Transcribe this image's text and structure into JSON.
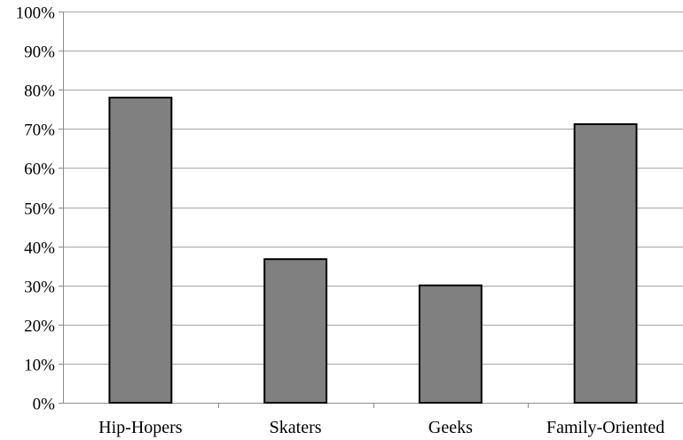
{
  "chart_data": {
    "type": "bar",
    "categories": [
      "Hip-Hopers",
      "Skaters",
      "Geeks",
      "Family-Oriented"
    ],
    "values": [
      78,
      36.7,
      30,
      71.2
    ],
    "ylim": [
      0,
      100
    ],
    "yticks": [
      0,
      10,
      20,
      30,
      40,
      50,
      60,
      70,
      80,
      90,
      100
    ],
    "ytick_suffix": "%",
    "grid": true,
    "legend": "none",
    "colors": {
      "bar_fill": "#808080",
      "bar_stroke": "#000000",
      "grid": "#a6a6a6",
      "axis": "#8c8c8c"
    }
  }
}
